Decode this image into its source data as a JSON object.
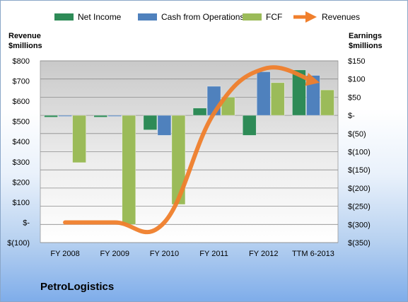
{
  "chart_data": {
    "type": "bar",
    "categories": [
      "FY 2008",
      "FY 2009",
      "FY 2010",
      "FY 2011",
      "FY 2012",
      "TTM 6-2013"
    ],
    "left_axis": {
      "title_lines": [
        "Revenue",
        "$millions"
      ],
      "range": [
        -100,
        800
      ],
      "ticks": [
        -100,
        0,
        100,
        200,
        300,
        400,
        500,
        600,
        700,
        800
      ],
      "tick_labels": [
        "$(100)",
        "$-",
        "$100",
        "$200",
        "$300",
        "$400",
        "$500",
        "$600",
        "$700",
        "$800"
      ]
    },
    "right_axis": {
      "title_lines": [
        "Earnings",
        "$millions"
      ],
      "range": [
        -350,
        150
      ],
      "ticks": [
        -350,
        -300,
        -250,
        -200,
        -150,
        -100,
        -50,
        0,
        50,
        100,
        150
      ],
      "tick_labels": [
        "$(350)",
        "$(300)",
        "$(250)",
        "$(200)",
        "$(150)",
        "$(100)",
        "$(50)",
        "$-",
        "$50",
        "$100",
        "$150"
      ]
    },
    "series": [
      {
        "name": "Net Income",
        "type": "bar",
        "axis": "right",
        "color": "#2e8b57",
        "values": [
          -5,
          -5,
          -40,
          20,
          -55,
          125
        ]
      },
      {
        "name": "Cash from Operations",
        "type": "bar",
        "axis": "right",
        "color": "#4f81bd",
        "values": [
          -2,
          -2,
          -55,
          80,
          120,
          110
        ]
      },
      {
        "name": "FCF",
        "type": "bar",
        "axis": "right",
        "color": "#9bbb59",
        "values": [
          -130,
          -300,
          -245,
          50,
          90,
          70
        ]
      },
      {
        "name": "Revenues",
        "type": "line",
        "axis": "left",
        "color": "#f07f2c",
        "values": [
          0,
          0,
          0,
          540,
          760,
          700
        ]
      }
    ],
    "legend_placement": "top",
    "grid": true
  },
  "company_name": "PetroLogistics"
}
